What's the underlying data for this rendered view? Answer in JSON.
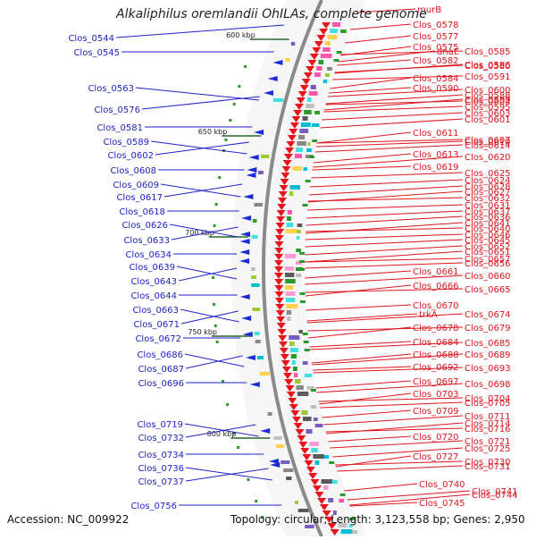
{
  "title": "Alkaliphilus oremlandii OhILAs, complete genome",
  "footer": {
    "accession": "Accession: NC_009922",
    "topology": "Topology: circular; Length: 3,123,558 bp; Genes: 2,950"
  },
  "scale_labels": [
    "600 kbp",
    "650 kbp",
    "700 kbp",
    "750 kbp",
    "800 kbp"
  ],
  "left_labels": [
    "Clos_0544",
    "Clos_0545",
    "Clos_0563",
    "Clos_0576",
    "Clos_0581",
    "Clos_0589",
    "Clos_0602",
    "Clos_0608",
    "Clos_0609",
    "Clos_0617",
    "Clos_0618",
    "Clos_0626",
    "Clos_0633",
    "Clos_0634",
    "Clos_0639",
    "Clos_0643",
    "Clos_0644",
    "Clos_0663",
    "Clos_0671",
    "Clos_0672",
    "Clos_0686",
    "Clos_0687",
    "Clos_0696",
    "Clos_0719",
    "Clos_0732",
    "Clos_0734",
    "Clos_0736",
    "Clos_0737",
    "Clos_0756"
  ],
  "right_labels": [
    "murB",
    "Clos_0578",
    "Clos_0577",
    "Clos_0575",
    "dnaE",
    "Clos_0585",
    "Clos_0582",
    "Clos_0580",
    "Clos_0586",
    "Clos_0584",
    "Clos_0591",
    "Clos_0590",
    "Clos_0600",
    "Clos_0588",
    "Clos_0599",
    "Clos_0604",
    "Clos_0595",
    "Clos_0603",
    "Clos_0601",
    "Clos_0611",
    "Clos_0607",
    "Clos_0610",
    "Clos_0614",
    "Clos_0613",
    "Clos_0620",
    "Clos_0619",
    "Clos_0625",
    "Clos_0624",
    "Clos_0628",
    "Clos_0627",
    "Clos_0632",
    "Clos_0631",
    "Clos_0637",
    "Clos_0636",
    "Clos_0641",
    "Clos_0640",
    "Clos_0646",
    "Clos_0645",
    "Clos_0652",
    "Clos_0651",
    "Clos_0657",
    "Clos_0656",
    "Clos_0661",
    "Clos_0660",
    "Clos_0666",
    "Clos_0665",
    "Clos_0670",
    "trkA",
    "Clos_0674",
    "Clos_0678",
    "Clos_0679",
    "Clos_0684",
    "Clos_0685",
    "Clos_0688",
    "Clos_0689",
    "Clos_0692",
    "Clos_0693",
    "Clos_0697",
    "Clos_0698",
    "Clos_0703",
    "Clos_0704",
    "Clos_0705",
    "Clos_0709",
    "Clos_0711",
    "Clos_0714",
    "Clos_0716",
    "Clos_0720",
    "Clos_0721",
    "Clos_0725",
    "Clos_0727",
    "Clos_0730",
    "Clos_0731",
    "Clos_0740",
    "Clos_0741",
    "Clos_0744",
    "Clos_0745"
  ],
  "colors": {
    "left_label": "#1f22c8",
    "right_label": "#e0141c",
    "backbone": "#8a8a8a",
    "forward_gene": "#e8141c",
    "reverse_gene": "#1a2ad8",
    "gc_skew": "#2a9a2a"
  }
}
